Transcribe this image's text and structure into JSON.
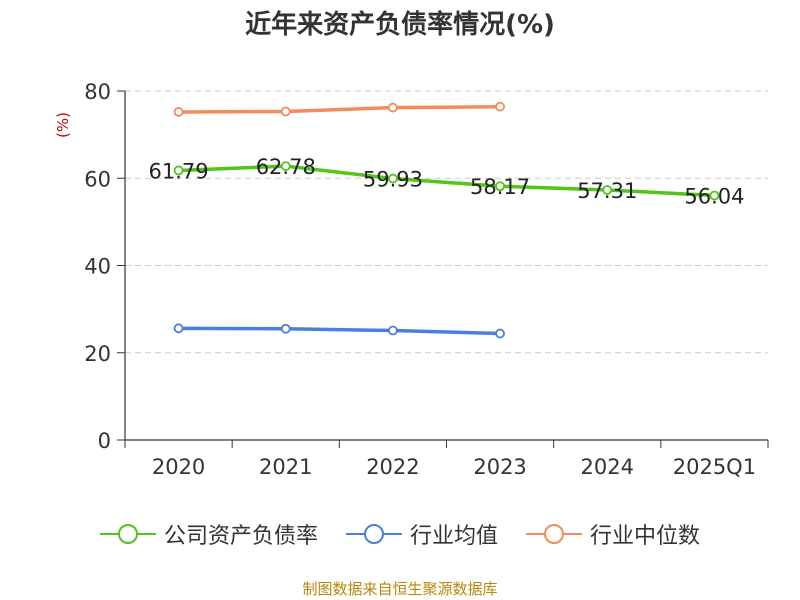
{
  "chart_data": {
    "type": "line",
    "title": "近年来资产负债率情况(%)",
    "ylabel": "(%)",
    "categories": [
      "2020",
      "2021",
      "2022",
      "2023",
      "2024",
      "2025Q1"
    ],
    "ylim": [
      0,
      80
    ],
    "yticks": [
      0,
      20,
      40,
      60,
      80
    ],
    "grid": true,
    "legend_position": "bottom",
    "series": [
      {
        "name": "公司资产负债率",
        "color": "#52c41a",
        "values": [
          61.79,
          62.78,
          59.93,
          58.17,
          57.31,
          56.04
        ],
        "show_labels": true
      },
      {
        "name": "行业均值",
        "color": "#4a7fe0",
        "values": [
          25.6,
          25.5,
          25.1,
          24.4,
          null,
          null
        ],
        "show_labels": false
      },
      {
        "name": "行业中位数",
        "color": "#f28c5a",
        "values": [
          75.2,
          75.3,
          76.2,
          76.4,
          null,
          null
        ],
        "show_labels": false
      }
    ]
  },
  "source": "制图数据来自恒生聚源数据库"
}
